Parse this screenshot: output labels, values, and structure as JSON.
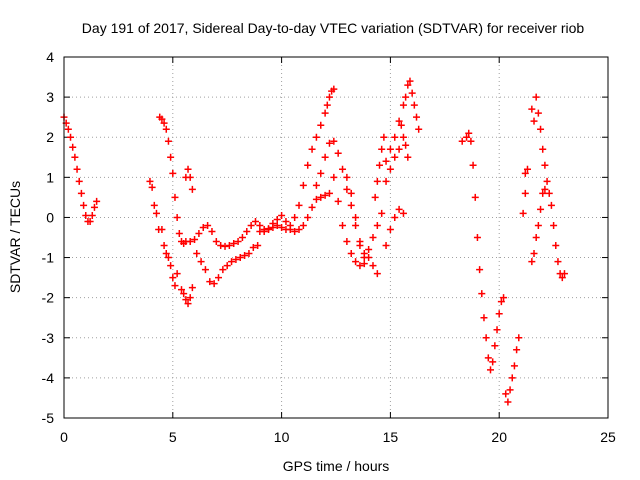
{
  "chart_data": {
    "type": "scatter",
    "title": "Day 191 of 2017, Sidereal Day-to-day VTEC variation (SDTVAR) for receiver riob",
    "xlabel": "GPS time / hours",
    "ylabel": "SDTVAR / TECUs",
    "xlim": [
      0,
      25
    ],
    "ylim": [
      -5,
      4
    ],
    "xticks": [
      0,
      5,
      10,
      15,
      20,
      25
    ],
    "yticks": [
      -5,
      -4,
      -3,
      -2,
      -1,
      0,
      1,
      2,
      3,
      4
    ],
    "grid": true,
    "legend": "none",
    "marker": "+",
    "colors": {
      "series": "#ff0000",
      "grid": "#a0a0a0",
      "axes": "#000000"
    },
    "series": [
      {
        "points": [
          [
            0.0,
            2.5
          ],
          [
            0.1,
            2.35
          ],
          [
            0.2,
            2.2
          ],
          [
            0.3,
            2.0
          ],
          [
            0.4,
            1.75
          ],
          [
            0.5,
            1.5
          ],
          [
            0.6,
            1.2
          ],
          [
            0.7,
            0.9
          ],
          [
            0.8,
            0.6
          ],
          [
            0.9,
            0.3
          ],
          [
            1.0,
            0.05
          ],
          [
            1.1,
            -0.1
          ],
          [
            1.2,
            -0.1
          ],
          [
            1.3,
            0.05
          ],
          [
            1.4,
            0.25
          ],
          [
            1.5,
            0.4
          ],
          [
            3.95,
            0.9
          ],
          [
            4.05,
            0.75
          ],
          [
            4.15,
            0.3
          ],
          [
            4.25,
            0.1
          ],
          [
            4.35,
            -0.3
          ],
          [
            4.4,
            2.5
          ],
          [
            4.5,
            2.45
          ],
          [
            4.6,
            2.35
          ],
          [
            4.7,
            2.2
          ],
          [
            4.8,
            1.9
          ],
          [
            4.9,
            1.5
          ],
          [
            5.0,
            1.1
          ],
          [
            5.1,
            0.5
          ],
          [
            5.2,
            0.0
          ],
          [
            5.3,
            -0.4
          ],
          [
            5.4,
            -0.6
          ],
          [
            5.5,
            -0.65
          ],
          [
            4.5,
            -0.3
          ],
          [
            4.6,
            -0.7
          ],
          [
            4.7,
            -0.9
          ],
          [
            4.8,
            -1.0
          ],
          [
            4.9,
            -1.2
          ],
          [
            5.0,
            -1.5
          ],
          [
            5.1,
            -1.7
          ],
          [
            5.2,
            -1.4
          ],
          [
            5.4,
            -1.8
          ],
          [
            5.5,
            -1.9
          ],
          [
            5.6,
            -2.05
          ],
          [
            5.7,
            -2.15
          ],
          [
            5.8,
            -2.0
          ],
          [
            5.9,
            -1.75
          ],
          [
            5.6,
            1.0
          ],
          [
            5.7,
            1.2
          ],
          [
            5.8,
            1.0
          ],
          [
            5.9,
            0.7
          ],
          [
            5.6,
            -0.6
          ],
          [
            5.8,
            -0.6
          ],
          [
            6.0,
            -0.55
          ],
          [
            6.2,
            -0.4
          ],
          [
            6.4,
            -0.25
          ],
          [
            6.6,
            -0.2
          ],
          [
            6.8,
            -0.35
          ],
          [
            7.0,
            -0.6
          ],
          [
            7.2,
            -0.7
          ],
          [
            7.4,
            -0.72
          ],
          [
            7.6,
            -0.7
          ],
          [
            7.8,
            -0.65
          ],
          [
            8.0,
            -0.6
          ],
          [
            8.2,
            -0.5
          ],
          [
            8.4,
            -0.35
          ],
          [
            8.6,
            -0.2
          ],
          [
            8.8,
            -0.1
          ],
          [
            9.0,
            -0.2
          ],
          [
            9.2,
            -0.35
          ],
          [
            9.4,
            -0.3
          ],
          [
            9.6,
            -0.15
          ],
          [
            9.8,
            -0.05
          ],
          [
            10.0,
            0.05
          ],
          [
            10.2,
            -0.1
          ],
          [
            10.4,
            -0.3
          ],
          [
            10.6,
            -0.35
          ],
          [
            10.8,
            -0.3
          ],
          [
            11.0,
            -0.2
          ],
          [
            11.2,
            0.0
          ],
          [
            11.4,
            0.25
          ],
          [
            11.6,
            0.45
          ],
          [
            11.8,
            0.5
          ],
          [
            12.0,
            0.55
          ],
          [
            12.2,
            0.6
          ],
          [
            6.1,
            -0.9
          ],
          [
            6.3,
            -1.1
          ],
          [
            6.5,
            -1.3
          ],
          [
            6.7,
            -1.6
          ],
          [
            6.9,
            -1.65
          ],
          [
            7.1,
            -1.5
          ],
          [
            7.3,
            -1.3
          ],
          [
            7.5,
            -1.2
          ],
          [
            7.7,
            -1.1
          ],
          [
            7.9,
            -1.05
          ],
          [
            8.1,
            -1.0
          ],
          [
            8.3,
            -0.95
          ],
          [
            8.5,
            -0.9
          ],
          [
            8.7,
            -0.75
          ],
          [
            8.9,
            -0.7
          ],
          [
            9.0,
            -0.35
          ],
          [
            9.2,
            -0.3
          ],
          [
            9.4,
            -0.28
          ],
          [
            9.6,
            -0.25
          ],
          [
            9.8,
            -0.2
          ],
          [
            10.0,
            -0.25
          ],
          [
            10.2,
            -0.3
          ],
          [
            10.4,
            -0.2
          ],
          [
            10.6,
            0.0
          ],
          [
            10.8,
            0.3
          ],
          [
            11.0,
            0.8
          ],
          [
            11.2,
            1.3
          ],
          [
            11.4,
            1.7
          ],
          [
            11.6,
            2.0
          ],
          [
            11.8,
            2.3
          ],
          [
            12.0,
            2.6
          ],
          [
            12.1,
            2.8
          ],
          [
            12.2,
            3.0
          ],
          [
            12.3,
            3.15
          ],
          [
            12.4,
            3.2
          ],
          [
            11.6,
            0.8
          ],
          [
            11.8,
            1.1
          ],
          [
            12.0,
            1.5
          ],
          [
            12.2,
            1.85
          ],
          [
            12.4,
            1.9
          ],
          [
            12.6,
            1.6
          ],
          [
            12.8,
            1.2
          ],
          [
            13.0,
            0.7
          ],
          [
            13.2,
            0.3
          ],
          [
            13.4,
            -0.2
          ],
          [
            13.6,
            -0.7
          ],
          [
            13.8,
            -1.0
          ],
          [
            14.0,
            -0.8
          ],
          [
            14.2,
            -0.5
          ],
          [
            14.4,
            -0.2
          ],
          [
            14.6,
            0.1
          ],
          [
            12.4,
            1.0
          ],
          [
            12.6,
            0.4
          ],
          [
            12.8,
            -0.2
          ],
          [
            13.0,
            -0.6
          ],
          [
            13.2,
            -0.9
          ],
          [
            13.4,
            -1.1
          ],
          [
            13.6,
            -1.2
          ],
          [
            13.8,
            -1.15
          ],
          [
            13.0,
            1.0
          ],
          [
            13.2,
            0.6
          ],
          [
            13.4,
            0.0
          ],
          [
            13.6,
            -0.6
          ],
          [
            13.8,
            -0.9
          ],
          [
            14.0,
            -1.0
          ],
          [
            14.2,
            -1.2
          ],
          [
            14.4,
            -1.4
          ],
          [
            14.3,
            0.5
          ],
          [
            14.4,
            0.9
          ],
          [
            14.5,
            1.3
          ],
          [
            14.6,
            1.7
          ],
          [
            14.7,
            2.0
          ],
          [
            14.8,
            -0.7
          ],
          [
            15.0,
            -0.3
          ],
          [
            15.2,
            0.0
          ],
          [
            15.4,
            0.2
          ],
          [
            15.6,
            0.1
          ],
          [
            14.8,
            1.4
          ],
          [
            15.0,
            1.7
          ],
          [
            15.2,
            2.0
          ],
          [
            15.4,
            2.4
          ],
          [
            15.6,
            2.8
          ],
          [
            15.7,
            3.0
          ],
          [
            15.8,
            3.3
          ],
          [
            15.9,
            3.4
          ],
          [
            16.0,
            3.1
          ],
          [
            16.1,
            2.8
          ],
          [
            16.2,
            2.5
          ],
          [
            16.3,
            2.2
          ],
          [
            15.5,
            2.3
          ],
          [
            15.6,
            2.0
          ],
          [
            15.7,
            1.8
          ],
          [
            15.8,
            1.5
          ],
          [
            14.8,
            0.9
          ],
          [
            15.0,
            1.2
          ],
          [
            15.2,
            1.5
          ],
          [
            15.4,
            1.7
          ],
          [
            18.3,
            1.9
          ],
          [
            18.5,
            2.0
          ],
          [
            18.6,
            2.1
          ],
          [
            18.7,
            1.9
          ],
          [
            18.8,
            1.3
          ],
          [
            18.9,
            0.5
          ],
          [
            19.0,
            -0.5
          ],
          [
            19.1,
            -1.3
          ],
          [
            19.2,
            -1.9
          ],
          [
            19.3,
            -2.5
          ],
          [
            19.4,
            -3.0
          ],
          [
            19.5,
            -3.5
          ],
          [
            19.6,
            -3.8
          ],
          [
            19.7,
            -3.6
          ],
          [
            19.8,
            -3.2
          ],
          [
            19.9,
            -2.8
          ],
          [
            20.0,
            -2.4
          ],
          [
            20.1,
            -2.1
          ],
          [
            20.2,
            -2.0
          ],
          [
            20.3,
            -4.4
          ],
          [
            20.4,
            -4.6
          ],
          [
            20.5,
            -4.3
          ],
          [
            20.6,
            -4.0
          ],
          [
            20.7,
            -3.7
          ],
          [
            20.8,
            -3.3
          ],
          [
            20.9,
            -3.0
          ],
          [
            21.1,
            0.1
          ],
          [
            21.2,
            0.6
          ],
          [
            21.3,
            1.2
          ],
          [
            21.2,
            1.1
          ],
          [
            21.5,
            -1.1
          ],
          [
            21.6,
            -0.9
          ],
          [
            21.7,
            -0.5
          ],
          [
            21.8,
            -0.2
          ],
          [
            21.9,
            0.2
          ],
          [
            22.0,
            0.6
          ],
          [
            22.1,
            0.7
          ],
          [
            21.5,
            2.7
          ],
          [
            21.6,
            2.4
          ],
          [
            21.7,
            3.0
          ],
          [
            21.8,
            2.6
          ],
          [
            21.9,
            2.2
          ],
          [
            22.0,
            1.7
          ],
          [
            22.1,
            1.3
          ],
          [
            22.2,
            0.9
          ],
          [
            22.3,
            0.6
          ],
          [
            22.4,
            0.3
          ],
          [
            22.5,
            -0.2
          ],
          [
            22.6,
            -0.7
          ],
          [
            22.7,
            -1.1
          ],
          [
            22.8,
            -1.4
          ],
          [
            22.9,
            -1.5
          ],
          [
            23.0,
            -1.4
          ]
        ]
      }
    ]
  }
}
